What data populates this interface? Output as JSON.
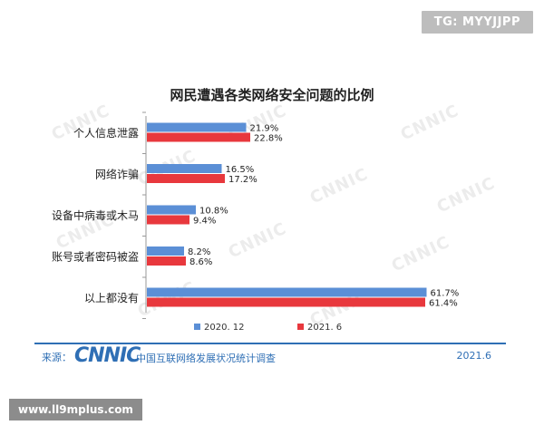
{
  "overlay": {
    "top_right_tag": "TG: MYYJJPP",
    "bottom_left_tag": "www.ll9mplus.com"
  },
  "chart_data": {
    "type": "bar",
    "orientation": "horizontal",
    "title": "网民遭遇各类网络安全问题的比例",
    "categories": [
      "个人信息泄露",
      "网络诈骗",
      "设备中病毒或木马",
      "账号或者密码被盗",
      "以上都没有"
    ],
    "series": [
      {
        "name": "2020. 12",
        "color": "#5b8fd6",
        "values": [
          21.9,
          16.5,
          10.8,
          8.2,
          61.7
        ],
        "labels": [
          "21.9%",
          "16.5%",
          "10.8%",
          "8.2%",
          "61.7%"
        ]
      },
      {
        "name": "2021. 6",
        "color": "#e8383d",
        "values": [
          22.8,
          17.2,
          9.4,
          8.6,
          61.4
        ],
        "labels": [
          "22.8%",
          "17.2%",
          "9.4%",
          "8.6%",
          "61.4%"
        ]
      }
    ],
    "xlim": [
      0,
      70
    ],
    "grid": false,
    "legend_position": "bottom-center"
  },
  "watermark_text": "CNNIC",
  "footer": {
    "source_label": "来源：",
    "logo_text": "CNNIC",
    "center_name": "中国互联网络发展状况统计调查",
    "date": "2021.6"
  }
}
